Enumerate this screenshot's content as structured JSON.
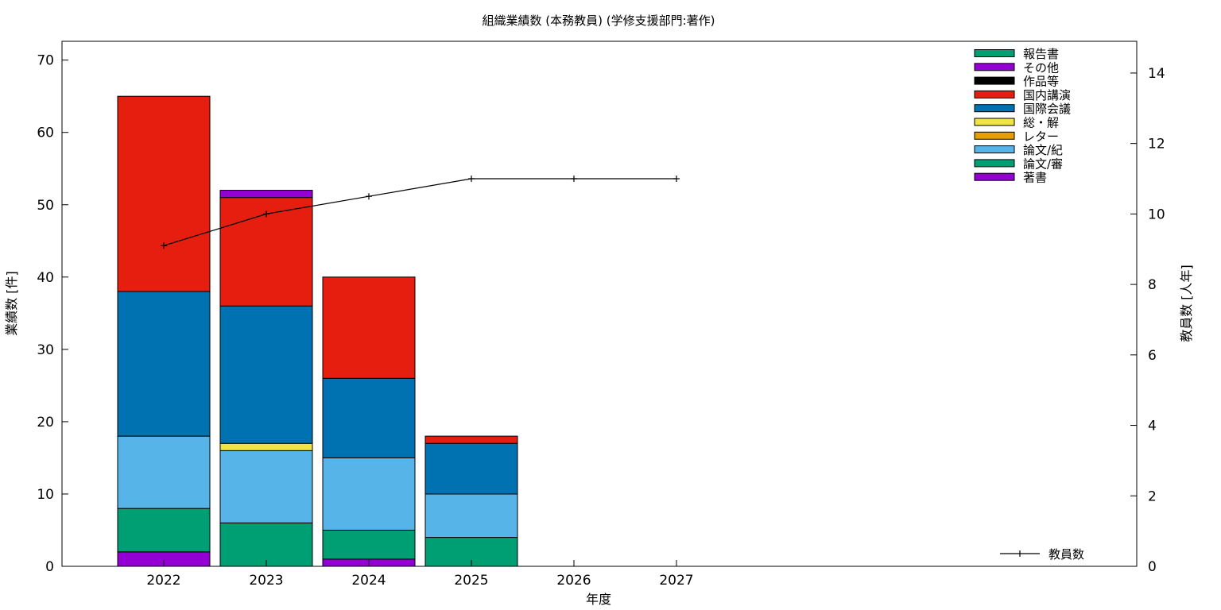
{
  "chart_data": {
    "type": "bar",
    "title": "組織業績数 (本務教員) (学修支援部門:著作)",
    "xlabel": "年度",
    "ylabel": "業績数 [件]",
    "y2label": "教員数 [人年]",
    "categories": [
      "2022",
      "2023",
      "2024",
      "2025",
      "2026",
      "2027"
    ],
    "ylim": [
      0,
      72.6
    ],
    "y2lim": [
      0,
      14.9
    ],
    "yticks": [
      "0",
      "10",
      "20",
      "30",
      "40",
      "50",
      "60",
      "70"
    ],
    "y2ticks": [
      "0",
      "2",
      "4",
      "6",
      "8",
      "10",
      "12",
      "14"
    ],
    "grid": false,
    "legend_position": "top-right",
    "stacked": true,
    "series": [
      {
        "name": "著書",
        "color": "#9400d3",
        "values": [
          2,
          0,
          1,
          0,
          0,
          0
        ]
      },
      {
        "name": "論文/審",
        "color": "#009e73",
        "values": [
          6,
          6,
          4,
          4,
          0,
          0
        ]
      },
      {
        "name": "論文/紀",
        "color": "#56b4e9",
        "values": [
          10,
          10,
          10,
          6,
          0,
          0
        ]
      },
      {
        "name": "レター",
        "color": "#e69f00",
        "values": [
          0,
          0,
          0,
          0,
          0,
          0
        ]
      },
      {
        "name": "総・解",
        "color": "#f0e442",
        "values": [
          0,
          1,
          0,
          0,
          0,
          0
        ]
      },
      {
        "name": "国際会議",
        "color": "#0072b2",
        "values": [
          20,
          19,
          11,
          7,
          0,
          0
        ]
      },
      {
        "name": "国内講演",
        "color": "#e51e10",
        "values": [
          27,
          15,
          14,
          1,
          0,
          0
        ]
      },
      {
        "name": "作品等",
        "color": "#000000",
        "values": [
          0,
          0,
          0,
          0,
          0,
          0
        ]
      },
      {
        "name": "その他",
        "color": "#9400d3",
        "values": [
          0,
          1,
          0,
          0,
          0,
          0
        ]
      },
      {
        "name": "報告書",
        "color": "#009e73",
        "values": [
          0,
          0,
          0,
          0,
          0,
          0
        ]
      }
    ],
    "line_series": {
      "name": "教員数",
      "axis": "y2",
      "color": "#000000",
      "values": [
        9.1,
        10.0,
        10.5,
        11.0,
        11.0,
        11.0
      ]
    }
  }
}
